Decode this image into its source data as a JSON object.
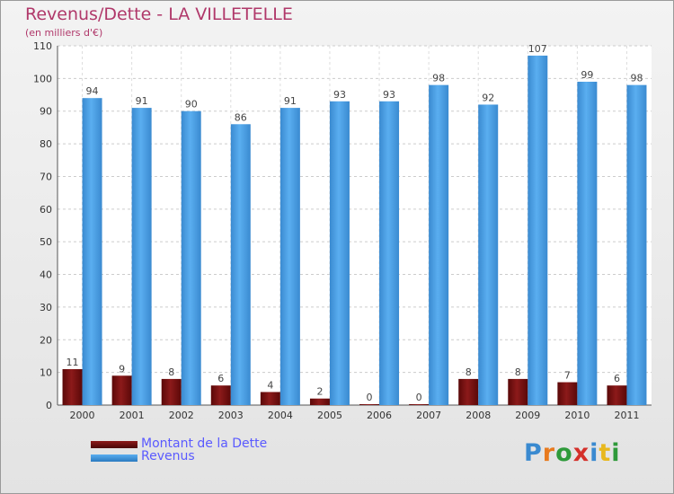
{
  "title": "Revenus/Dette - LA VILLETELLE",
  "subtitle": "(en milliers d'€)",
  "colors": {
    "title": "#b0386a",
    "dette": "#7a1010",
    "revenus": "#4a9ee0",
    "legend_text": "#5a5aff"
  },
  "legend": {
    "dette_label": "Montant de la Dette",
    "revenus_label": "Revenus"
  },
  "logo": {
    "text": "Proxiti"
  },
  "chart_data": {
    "type": "bar",
    "categories": [
      "2000",
      "2001",
      "2002",
      "2003",
      "2004",
      "2005",
      "2006",
      "2007",
      "2008",
      "2009",
      "2010",
      "2011"
    ],
    "series": [
      {
        "name": "Montant de la Dette",
        "values": [
          11,
          9,
          8,
          6,
          4,
          2,
          0,
          0,
          8,
          8,
          7,
          6
        ]
      },
      {
        "name": "Revenus",
        "values": [
          94,
          91,
          90,
          86,
          91,
          93,
          93,
          98,
          92,
          107,
          99,
          98
        ]
      }
    ],
    "title": "Revenus/Dette - LA VILLETELLE",
    "subtitle": "(en milliers d'€)",
    "ylim": [
      0,
      110
    ],
    "yticks": [
      0,
      10,
      20,
      30,
      40,
      50,
      60,
      70,
      80,
      90,
      100,
      110
    ],
    "grid": true,
    "legend_position": "bottom-left"
  }
}
